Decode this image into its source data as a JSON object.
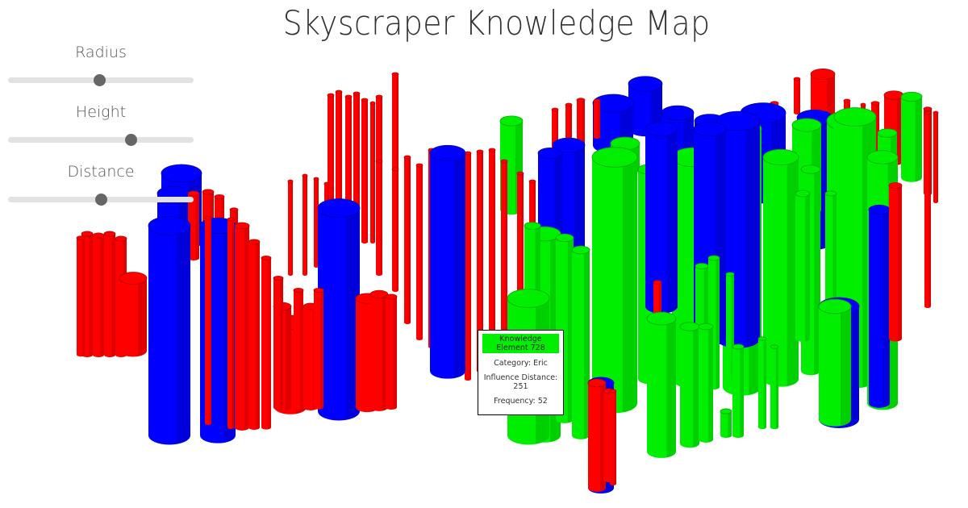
{
  "page": {
    "title": "Skyscraper Knowledge Map"
  },
  "controls": [
    {
      "label": "Radius",
      "value": 0.49
    },
    {
      "label": "Height",
      "value": 0.66
    },
    {
      "label": "Distance",
      "value": 0.5
    }
  ],
  "colors": {
    "red": "#ff0000",
    "blue": "#0000ff",
    "green": "#00ee00"
  },
  "tooltip": {
    "title": "Knowledge Element 728",
    "category": "Category: Eric",
    "influence": "Influence Distance: 251",
    "frequency": "Frequency: 52"
  }
}
